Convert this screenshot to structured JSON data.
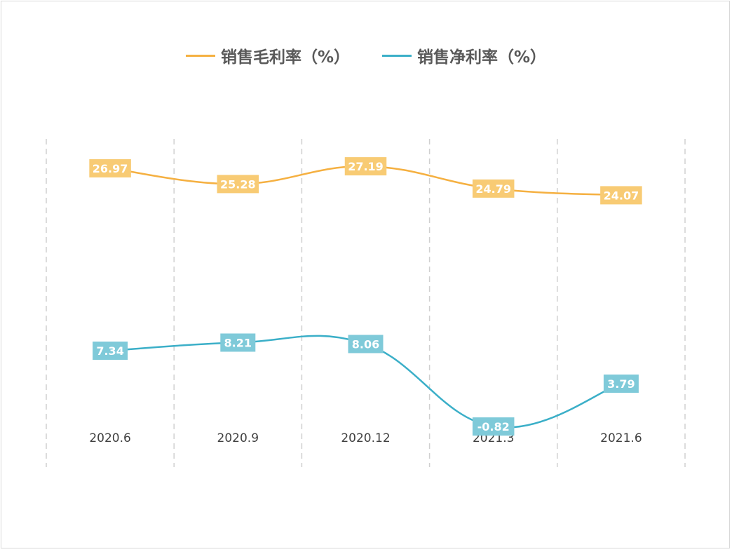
{
  "chart_data": {
    "type": "line",
    "categories": [
      "2020.6",
      "2020.9",
      "2020.12",
      "2021.3",
      "2021.6"
    ],
    "series": [
      {
        "name": "销售毛利率（%）",
        "values": [
          26.97,
          25.28,
          27.19,
          24.79,
          24.07
        ],
        "color": "#F5B041",
        "label_bg": "#F8CB74"
      },
      {
        "name": "销售净利率（%）",
        "values": [
          7.34,
          8.21,
          8.06,
          -0.82,
          3.79
        ],
        "color": "#3BAFC8",
        "label_bg": "#7FCAD9"
      }
    ],
    "title": "",
    "xlabel": "",
    "ylabel": "",
    "smooth": true,
    "data_labels": true,
    "grid": "vertical dashed",
    "legend": "top-center",
    "y_axis_visible": false
  }
}
